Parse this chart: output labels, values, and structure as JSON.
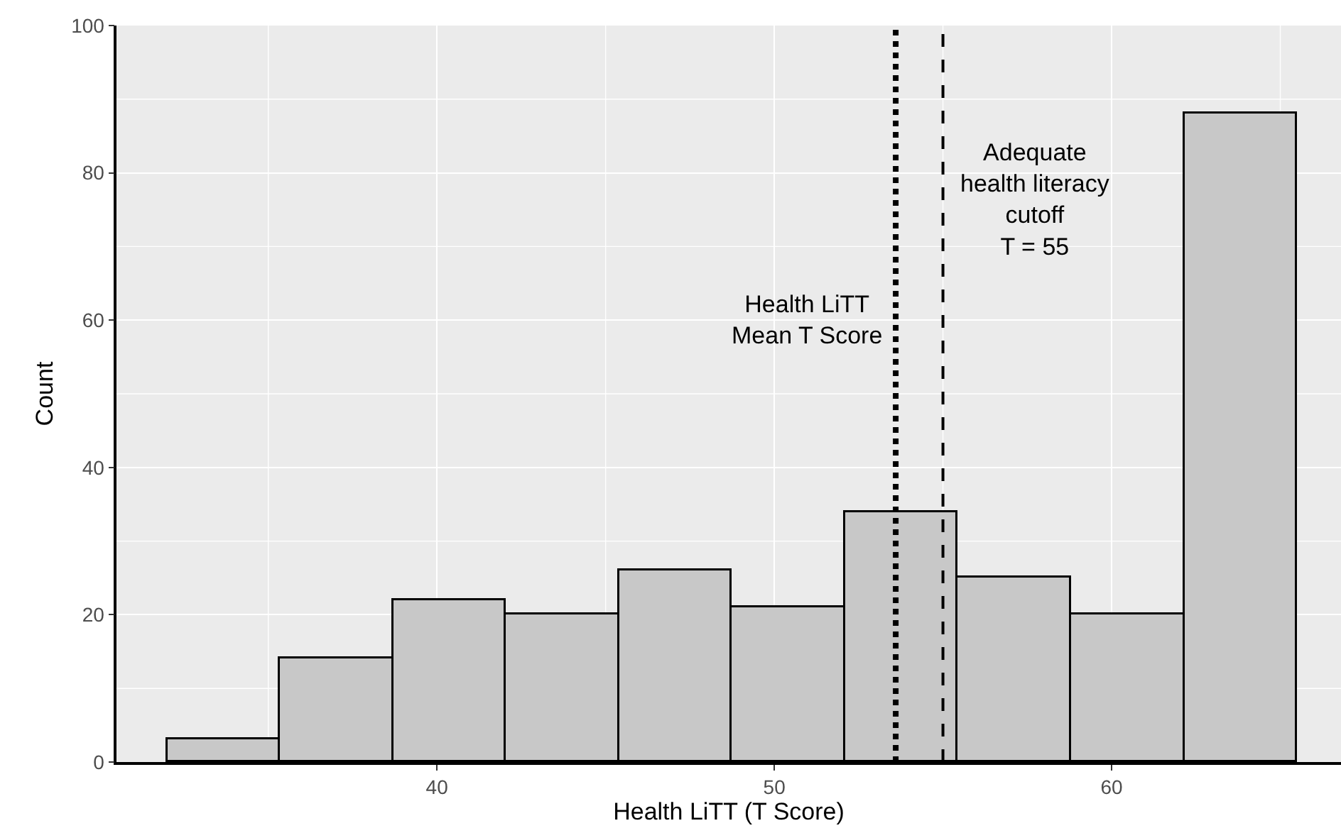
{
  "chart_data": {
    "type": "histogram",
    "xlabel": "Health LiTT (T Score)",
    "ylabel": "Count",
    "bins": [
      32.0,
      35.35,
      38.7,
      42.05,
      45.4,
      48.75,
      52.1,
      55.45,
      58.8,
      62.15,
      65.5
    ],
    "values": [
      3,
      14,
      22,
      20,
      26,
      21,
      34,
      25,
      20,
      88
    ],
    "color": "#c8c8c8",
    "xlim": [
      30.5,
      66.8
    ],
    "xticks": [
      40,
      50,
      60
    ],
    "ylim": [
      0,
      100
    ],
    "yticks": [
      0,
      20,
      40,
      60,
      80,
      100
    ],
    "grid": true,
    "ref_lines": [
      {
        "axis": "x",
        "value": 53.6,
        "label": "Health LiTT\nMean T Score",
        "line_style": "dotted",
        "color": "#000000"
      },
      {
        "axis": "x",
        "value": 55,
        "label": "Adequate\nhealth literacy\ncutoff\nT = 55",
        "line_style": "dashed",
        "color": "#000000"
      }
    ]
  }
}
